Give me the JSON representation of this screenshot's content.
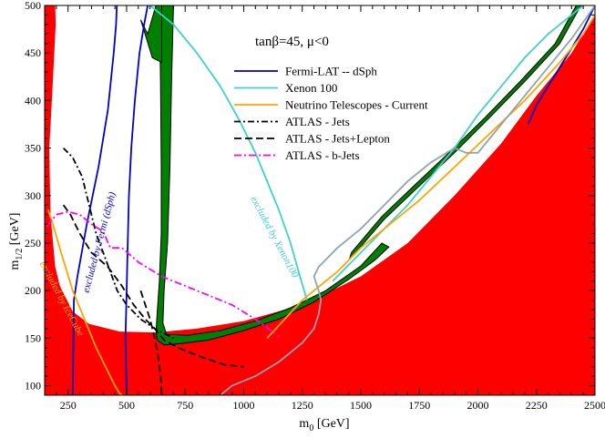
{
  "chart_data": {
    "type": "line",
    "title": "tanβ=45, μ<0",
    "xlabel": "m",
    "xlabel_sub": "0",
    "xlabel_unit": " [GeV]",
    "ylabel": "m",
    "ylabel_sub": "1/2",
    "ylabel_unit": " [GeV]",
    "xlim": [
      150,
      2500
    ],
    "ylim": [
      90,
      500
    ],
    "xticks": [
      "250",
      "500",
      "750",
      "1000",
      "1250",
      "1500",
      "1750",
      "2000",
      "2250",
      "2500"
    ],
    "xtick_values": [
      250,
      500,
      750,
      1000,
      1250,
      1500,
      1750,
      2000,
      2250,
      2500
    ],
    "yticks": [
      "100",
      "150",
      "200",
      "250",
      "300",
      "350",
      "400",
      "450",
      "500"
    ],
    "ytick_values": [
      100,
      150,
      200,
      250,
      300,
      350,
      400,
      450,
      500
    ],
    "regions": [
      {
        "color": "#ff0000",
        "points": [
          [
            150,
            90
          ],
          [
            150,
            500
          ],
          [
            195,
            500
          ],
          [
            197,
            480
          ],
          [
            185,
            420
          ],
          [
            170,
            350
          ],
          [
            175,
            280
          ],
          [
            195,
            225
          ],
          [
            215,
            205
          ],
          [
            270,
            178
          ],
          [
            340,
            165
          ],
          [
            470,
            157
          ],
          [
            620,
            156
          ],
          [
            800,
            160
          ],
          [
            1000,
            168
          ],
          [
            1250,
            185
          ],
          [
            1500,
            215
          ],
          [
            1700,
            250
          ],
          [
            1900,
            300
          ],
          [
            2100,
            355
          ],
          [
            2250,
            405
          ],
          [
            2400,
            450
          ],
          [
            2500,
            490
          ],
          [
            2500,
            90
          ]
        ]
      },
      {
        "color": "#008000",
        "points": [
          [
            640,
            500
          ],
          [
            645,
            420
          ],
          [
            648,
            330
          ],
          [
            648,
            260
          ],
          [
            640,
            210
          ],
          [
            630,
            175
          ],
          [
            626,
            158
          ],
          [
            630,
            148
          ],
          [
            660,
            143
          ],
          [
            720,
            144
          ],
          [
            850,
            148
          ],
          [
            1000,
            158
          ],
          [
            1150,
            170
          ],
          [
            1300,
            188
          ],
          [
            1450,
            212
          ],
          [
            1560,
            232
          ],
          [
            1620,
            246
          ],
          [
            1590,
            250
          ],
          [
            1500,
            226
          ],
          [
            1350,
            200
          ],
          [
            1200,
            182
          ],
          [
            1050,
            168
          ],
          [
            900,
            158
          ],
          [
            760,
            153
          ],
          [
            670,
            154
          ],
          [
            655,
            166
          ],
          [
            660,
            200
          ],
          [
            675,
            250
          ],
          [
            685,
            330
          ],
          [
            692,
            420
          ],
          [
            700,
            500
          ]
        ]
      },
      {
        "color": "#008000",
        "points": [
          [
            1450,
            232
          ],
          [
            1600,
            275
          ],
          [
            1750,
            310
          ],
          [
            1900,
            345
          ],
          [
            2050,
            382
          ],
          [
            2200,
            420
          ],
          [
            2350,
            460
          ],
          [
            2440,
            500
          ],
          [
            2420,
            500
          ],
          [
            2330,
            460
          ],
          [
            2180,
            420
          ],
          [
            2030,
            382
          ],
          [
            1880,
            346
          ],
          [
            1730,
            311
          ],
          [
            1590,
            278
          ],
          [
            1460,
            240
          ]
        ]
      },
      {
        "color": "#008000",
        "points": [
          [
            560,
            485
          ],
          [
            610,
            445
          ],
          [
            650,
            440
          ],
          [
            650,
            500
          ],
          [
            625,
            500
          ],
          [
            590,
            470
          ]
        ]
      }
    ],
    "series": [
      {
        "name": "Fermi-LAT -- dSph",
        "color": "#0000cc",
        "dash": "",
        "x": [
          270,
          275,
          290,
          330,
          380,
          420,
          445,
          455,
          458
        ],
        "y": [
          90,
          190,
          215,
          270,
          330,
          390,
          450,
          480,
          500
        ]
      },
      {
        "color": "#0000cc",
        "dash": "",
        "x": [
          500,
          495,
          500,
          505,
          510,
          520,
          535,
          555,
          575,
          590
        ],
        "y": [
          90,
          150,
          200,
          250,
          300,
          350,
          400,
          450,
          480,
          500
        ]
      },
      {
        "color": "#0000cc",
        "dash": "",
        "x": [
          2215,
          2250,
          2300,
          2350,
          2400,
          2450,
          2480,
          2500
        ],
        "y": [
          375,
          395,
          415,
          435,
          455,
          475,
          490,
          500
        ]
      },
      {
        "name": "Xenon 100",
        "color": "#40d0d0",
        "dash": "",
        "x": [
          600,
          700,
          800,
          900,
          980,
          1050,
          1100,
          1150,
          1200,
          1240,
          1270
        ],
        "y": [
          500,
          480,
          450,
          415,
          380,
          345,
          315,
          285,
          250,
          215,
          190
        ]
      },
      {
        "color": "#40d0d0",
        "dash": "",
        "x": [
          1380,
          1500,
          1600,
          1700,
          1800,
          1900,
          2000,
          2100,
          2200,
          2300,
          2400,
          2450
        ],
        "y": [
          210,
          240,
          265,
          290,
          320,
          350,
          385,
          415,
          445,
          470,
          490,
          500
        ]
      },
      {
        "name": "Neutrino Telescopes - Current",
        "color": "#ffa500",
        "dash": "",
        "x": [
          165,
          185,
          220,
          270,
          320,
          370,
          420,
          450,
          470,
          480
        ],
        "y": [
          285,
          270,
          240,
          200,
          170,
          140,
          115,
          100,
          92,
          90
        ]
      },
      {
        "color": "#ffa500",
        "dash": "",
        "x": [
          1100,
          1250,
          1400,
          1500,
          1600,
          1750,
          1900,
          2050,
          2200,
          2350,
          2450,
          2500
        ],
        "y": [
          150,
          190,
          220,
          245,
          265,
          295,
          330,
          365,
          400,
          440,
          470,
          490
        ]
      },
      {
        "name": "ATLAS - Jets",
        "color": "#000000",
        "dash": "7,3,2,3",
        "x": [
          230,
          270,
          310,
          340,
          370,
          400,
          430,
          460,
          500,
          560,
          620,
          700
        ],
        "y": [
          350,
          340,
          320,
          290,
          260,
          240,
          220,
          200,
          185,
          170,
          160,
          150
        ]
      },
      {
        "name": "ATLAS - Jets+Lepton",
        "color": "#000000",
        "dash": "8,4",
        "x": [
          230,
          260,
          300,
          350,
          420,
          480,
          530,
          580,
          620,
          660,
          720,
          820,
          920,
          1000
        ],
        "y": [
          290,
          280,
          260,
          240,
          225,
          205,
          185,
          170,
          160,
          148,
          140,
          130,
          122,
          120
        ]
      },
      {
        "color": "#000000",
        "dash": "8,4",
        "x": [
          560,
          580,
          600,
          620,
          635,
          645,
          650
        ],
        "y": [
          200,
          185,
          170,
          150,
          130,
          110,
          90
        ]
      },
      {
        "name": "ATLAS - b-Jets",
        "color": "#ff00ff",
        "dash": "8,3,2,3",
        "x": [
          160,
          200,
          250,
          300,
          350,
          400,
          430,
          480,
          550,
          650,
          750,
          850,
          950,
          1050,
          1150
        ],
        "y": [
          268,
          280,
          283,
          280,
          270,
          262,
          245,
          245,
          230,
          215,
          205,
          195,
          185,
          170,
          152
        ]
      },
      {
        "color": "#90a4ae",
        "dash": "",
        "x": [
          900,
          950,
          1050,
          1150,
          1250,
          1300,
          1320,
          1330,
          1320,
          1300,
          1320,
          1400,
          1500,
          1600,
          1700,
          1800,
          1900,
          1950,
          2000,
          2100,
          2200,
          2300,
          2400,
          2500
        ],
        "y": [
          90,
          100,
          110,
          125,
          145,
          160,
          175,
          190,
          200,
          215,
          225,
          245,
          265,
          290,
          315,
          335,
          350,
          345,
          345,
          375,
          405,
          435,
          465,
          500
        ]
      }
    ],
    "annotations": [
      {
        "text": "excluded by Fermi (dSph)",
        "color": "#0000cc",
        "x": 395,
        "y": 250,
        "rotate": -75
      },
      {
        "text": "excluded by Xenon100",
        "color": "#40d0d0",
        "x": 1120,
        "y": 255,
        "rotate": 62
      },
      {
        "text": "excluded by IceCube",
        "color": "#ffa500",
        "x": 212,
        "y": 190,
        "rotate": 62
      }
    ],
    "legend_position": "upper-center"
  }
}
